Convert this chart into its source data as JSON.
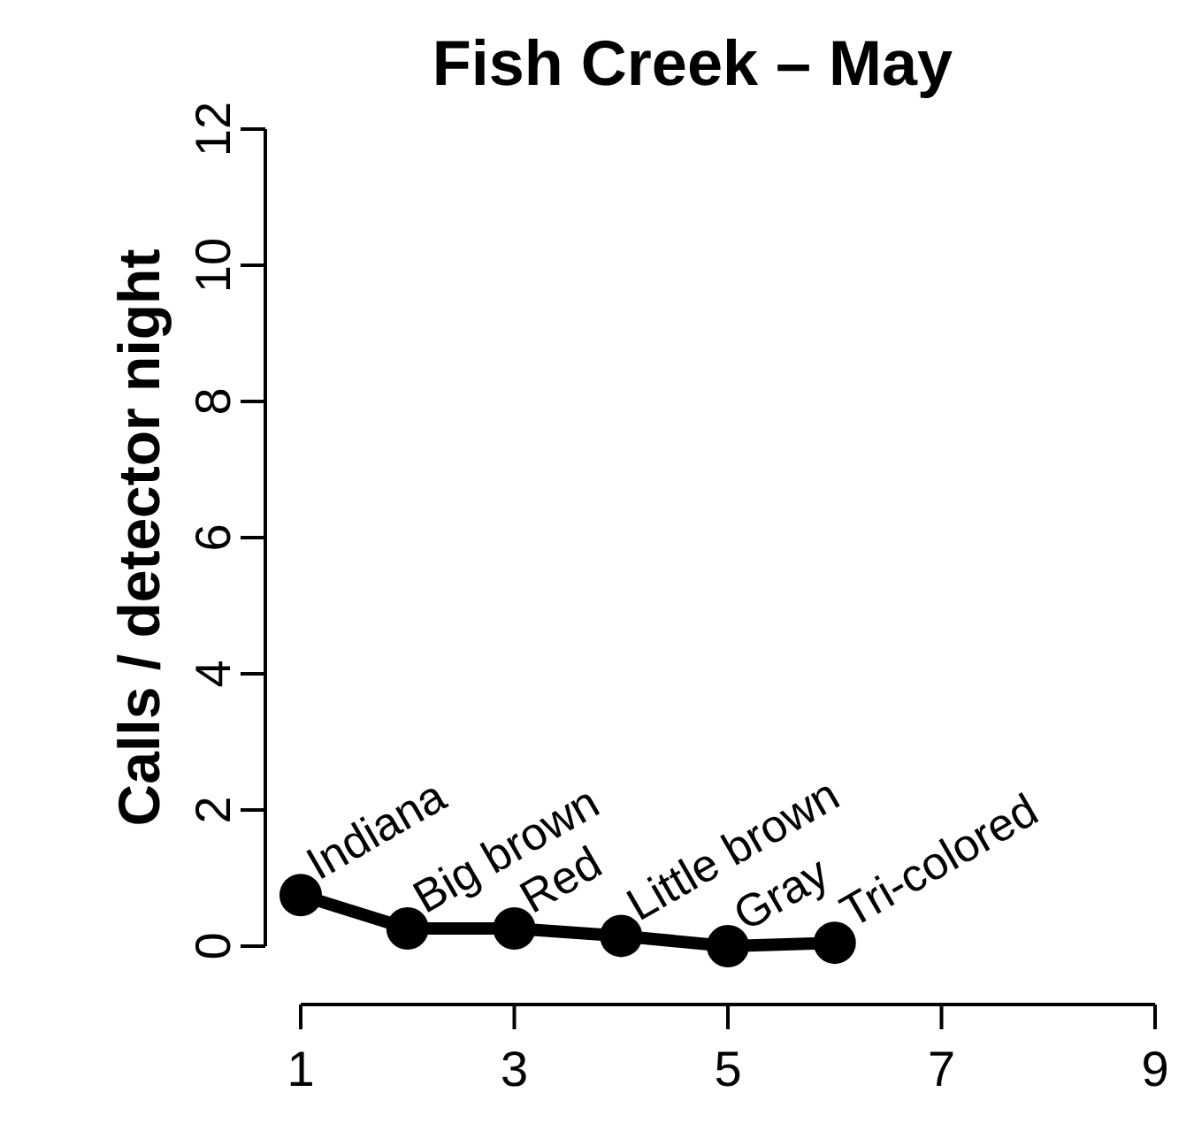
{
  "chart_data": {
    "type": "line",
    "title": "Fish Creek – May",
    "ylabel": "Calls / detector night",
    "x": [
      1,
      2,
      3,
      4,
      5,
      6
    ],
    "series": [
      {
        "color": "#000000",
        "values": [
          0.75,
          0.26,
          0.26,
          0.15,
          0,
          0.05
        ]
      }
    ],
    "marker": "circle",
    "line_style": "solid",
    "grid": false,
    "xlim": [
      1,
      9
    ],
    "xticks": [
      1,
      3,
      5,
      7,
      9
    ],
    "ylim": [
      0,
      12
    ],
    "yticks": [
      0,
      2,
      4,
      6,
      8,
      10,
      12
    ],
    "annotations": [
      {
        "text": "Indiana",
        "x": 1,
        "y": 0.75
      },
      {
        "text": "Big brown",
        "x": 2,
        "y": 0.26
      },
      {
        "text": "Red",
        "x": 3,
        "y": 0.26
      },
      {
        "text": "Little brown",
        "x": 4,
        "y": 0.15
      },
      {
        "text": "Gray",
        "x": 5,
        "y": 0
      },
      {
        "text": "Tri-colored",
        "x": 6,
        "y": 0.05
      }
    ]
  }
}
